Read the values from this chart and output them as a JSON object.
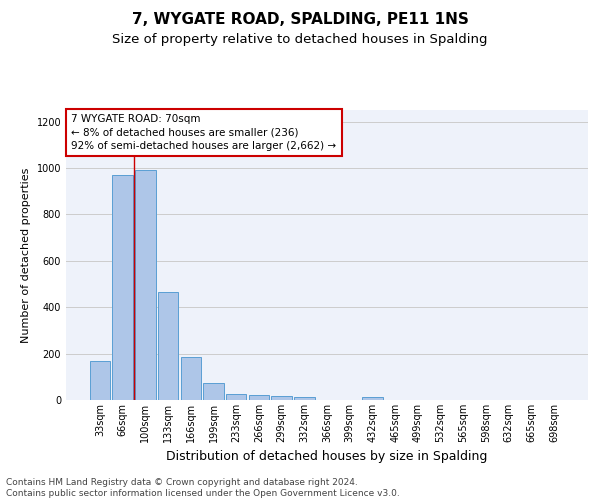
{
  "title": "7, WYGATE ROAD, SPALDING, PE11 1NS",
  "subtitle": "Size of property relative to detached houses in Spalding",
  "xlabel": "Distribution of detached houses by size in Spalding",
  "ylabel": "Number of detached properties",
  "categories": [
    "33sqm",
    "66sqm",
    "100sqm",
    "133sqm",
    "166sqm",
    "199sqm",
    "233sqm",
    "266sqm",
    "299sqm",
    "332sqm",
    "366sqm",
    "399sqm",
    "432sqm",
    "465sqm",
    "499sqm",
    "532sqm",
    "565sqm",
    "598sqm",
    "632sqm",
    "665sqm",
    "698sqm"
  ],
  "values": [
    170,
    970,
    990,
    465,
    185,
    75,
    28,
    22,
    18,
    12,
    0,
    0,
    14,
    0,
    0,
    0,
    0,
    0,
    0,
    0,
    0
  ],
  "bar_color": "#aec6e8",
  "bar_edge_color": "#5a9fd4",
  "vline_x": 1.5,
  "annotation_text": "7 WYGATE ROAD: 70sqm\n← 8% of detached houses are smaller (236)\n92% of semi-detached houses are larger (2,662) →",
  "annotation_box_color": "#ffffff",
  "annotation_box_edge_color": "#cc0000",
  "vline_color": "#cc0000",
  "ylim": [
    0,
    1250
  ],
  "yticks": [
    0,
    200,
    400,
    600,
    800,
    1000,
    1200
  ],
  "grid_color": "#cccccc",
  "bg_color": "#eef2fa",
  "footer": "Contains HM Land Registry data © Crown copyright and database right 2024.\nContains public sector information licensed under the Open Government Licence v3.0.",
  "title_fontsize": 11,
  "subtitle_fontsize": 9.5,
  "xlabel_fontsize": 9,
  "ylabel_fontsize": 8,
  "tick_fontsize": 7,
  "footer_fontsize": 6.5,
  "annot_fontsize": 7.5
}
